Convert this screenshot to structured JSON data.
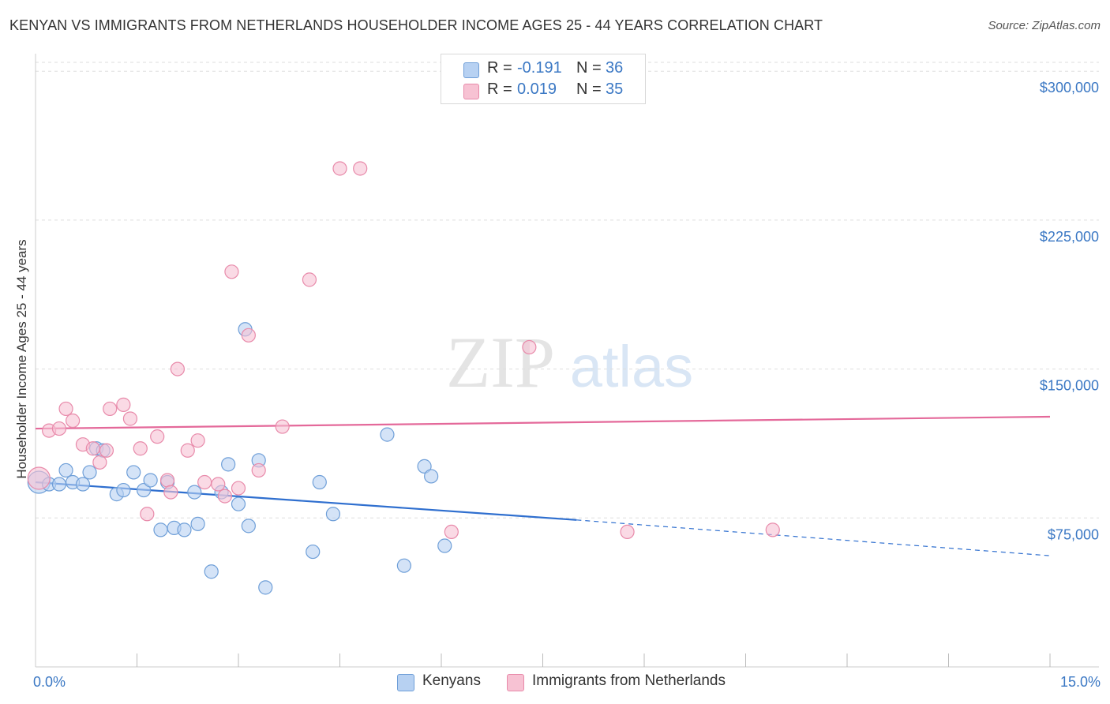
{
  "title": "KENYAN VS IMMIGRANTS FROM NETHERLANDS HOUSEHOLDER INCOME AGES 25 - 44 YEARS CORRELATION CHART",
  "source": "Source: ZipAtlas.com",
  "watermark": {
    "zip": "ZIP",
    "atlas": "atlas"
  },
  "legend_top": [
    {
      "r_label": "R =",
      "r_value": "-0.191",
      "n_label": "N =",
      "n_value": "36"
    },
    {
      "r_label": "R =",
      "r_value": "0.019",
      "n_label": "N =",
      "n_value": "35"
    }
  ],
  "legend_bottom": [
    "Kenyans",
    "Immigrants from Netherlands"
  ],
  "colors": {
    "blue_fill": "#b7d1f2",
    "blue_stroke": "#6f9fd8",
    "blue_line": "#2f6fcf",
    "pink_fill": "#f7c2d3",
    "pink_stroke": "#e88aaa",
    "pink_line": "#e4699a",
    "tick_text": "#3b78c4",
    "grid": "#dddddd"
  },
  "chart_data": {
    "type": "scatter",
    "title": "KENYAN VS IMMIGRANTS FROM NETHERLANDS HOUSEHOLDER INCOME AGES 25 - 44 YEARS CORRELATION CHART",
    "xlabel": "",
    "ylabel": "Householder Income Ages 25 - 44 years",
    "xlim": [
      0,
      15
    ],
    "ylim": [
      0,
      312000
    ],
    "x_tick_labels": [
      {
        "value": 0,
        "label": "0.0%"
      },
      {
        "value": 15,
        "label": "15.0%"
      }
    ],
    "x_minor_ticks": [
      1.5,
      3,
      4.5,
      6,
      7.5,
      9,
      10.5,
      12,
      13.5,
      15
    ],
    "y_ticks": [
      {
        "value": 75000,
        "label": "$75,000"
      },
      {
        "value": 150000,
        "label": "$150,000"
      },
      {
        "value": 225000,
        "label": "$225,000"
      },
      {
        "value": 300000,
        "label": "$300,000"
      }
    ],
    "series": [
      {
        "name": "Kenyans",
        "color": "#6f9fd8",
        "points": [
          [
            0.05,
            93000
          ],
          [
            0.2,
            92000
          ],
          [
            0.35,
            92000
          ],
          [
            0.45,
            99000
          ],
          [
            0.55,
            93000
          ],
          [
            0.7,
            92000
          ],
          [
            0.8,
            98000
          ],
          [
            0.9,
            110000
          ],
          [
            1.0,
            109000
          ],
          [
            1.2,
            87000
          ],
          [
            1.3,
            89000
          ],
          [
            1.45,
            98000
          ],
          [
            1.6,
            89000
          ],
          [
            1.7,
            94000
          ],
          [
            1.85,
            69000
          ],
          [
            1.95,
            93000
          ],
          [
            2.05,
            70000
          ],
          [
            2.2,
            69000
          ],
          [
            2.35,
            88000
          ],
          [
            2.4,
            72000
          ],
          [
            2.6,
            48000
          ],
          [
            2.75,
            88000
          ],
          [
            2.85,
            102000
          ],
          [
            3.0,
            82000
          ],
          [
            3.15,
            71000
          ],
          [
            3.1,
            170000
          ],
          [
            3.3,
            104000
          ],
          [
            3.4,
            40000
          ],
          [
            4.1,
            58000
          ],
          [
            4.2,
            93000
          ],
          [
            4.4,
            77000
          ],
          [
            5.2,
            117000
          ],
          [
            5.45,
            51000
          ],
          [
            5.75,
            101000
          ],
          [
            5.85,
            96000
          ],
          [
            6.05,
            61000
          ]
        ]
      },
      {
        "name": "Immigrants from Netherlands",
        "color": "#e88aaa",
        "points": [
          [
            0.05,
            95000
          ],
          [
            0.2,
            119000
          ],
          [
            0.35,
            120000
          ],
          [
            0.45,
            130000
          ],
          [
            0.55,
            124000
          ],
          [
            0.7,
            112000
          ],
          [
            0.85,
            110000
          ],
          [
            0.95,
            103000
          ],
          [
            1.05,
            109000
          ],
          [
            1.1,
            130000
          ],
          [
            1.3,
            132000
          ],
          [
            1.4,
            125000
          ],
          [
            1.55,
            110000
          ],
          [
            1.65,
            77000
          ],
          [
            1.8,
            116000
          ],
          [
            1.95,
            94000
          ],
          [
            2.0,
            88000
          ],
          [
            2.1,
            150000
          ],
          [
            2.25,
            109000
          ],
          [
            2.4,
            114000
          ],
          [
            2.5,
            93000
          ],
          [
            2.7,
            92000
          ],
          [
            2.8,
            86000
          ],
          [
            2.9,
            199000
          ],
          [
            3.0,
            90000
          ],
          [
            3.15,
            167000
          ],
          [
            3.3,
            99000
          ],
          [
            3.65,
            121000
          ],
          [
            4.05,
            195000
          ],
          [
            4.5,
            251000
          ],
          [
            4.8,
            251000
          ],
          [
            6.15,
            68000
          ],
          [
            7.3,
            161000
          ],
          [
            8.75,
            68000
          ],
          [
            10.9,
            69000
          ]
        ]
      }
    ],
    "trend_lines": [
      {
        "series": "Kenyans",
        "x": [
          0,
          8.0
        ],
        "y": [
          93000,
          74000
        ],
        "dashed_extension": {
          "x": [
            8.0,
            15
          ],
          "y": [
            74000,
            56000
          ]
        }
      },
      {
        "series": "Immigrants from Netherlands",
        "x": [
          0,
          15
        ],
        "y": [
          120000,
          126000
        ]
      }
    ]
  }
}
